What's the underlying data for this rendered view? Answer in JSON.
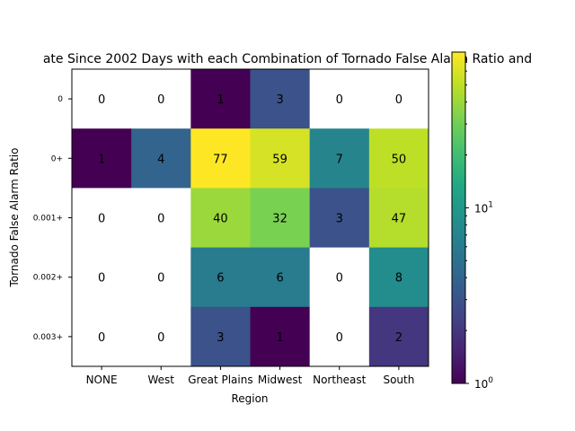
{
  "chart_data": {
    "type": "heatmap",
    "title": "ate Since 2002 Days with each Combination of Tornado False Alarm Ratio and",
    "xlabel": "Region",
    "ylabel": "Tornado False Alarm Ratio",
    "x_categories": [
      "NONE",
      "West",
      "Great Plains",
      "Midwest",
      "Northeast",
      "South"
    ],
    "y_categories": [
      "0",
      "0+",
      "0.001+",
      "0.002+",
      "0.003+"
    ],
    "values": [
      [
        0,
        0,
        1,
        3,
        0,
        0
      ],
      [
        1,
        4,
        77,
        59,
        7,
        50
      ],
      [
        0,
        0,
        40,
        32,
        3,
        47
      ],
      [
        0,
        0,
        6,
        6,
        0,
        8
      ],
      [
        0,
        0,
        3,
        1,
        0,
        2
      ]
    ],
    "color_scale": {
      "colormap": "viridis",
      "scale": "log",
      "min": 1,
      "max": 77,
      "zero_color": "#ffffff",
      "ticks": [
        {
          "value": 1,
          "base": "10",
          "exp": "0"
        },
        {
          "value": 10,
          "base": "10",
          "exp": "1"
        }
      ]
    }
  }
}
